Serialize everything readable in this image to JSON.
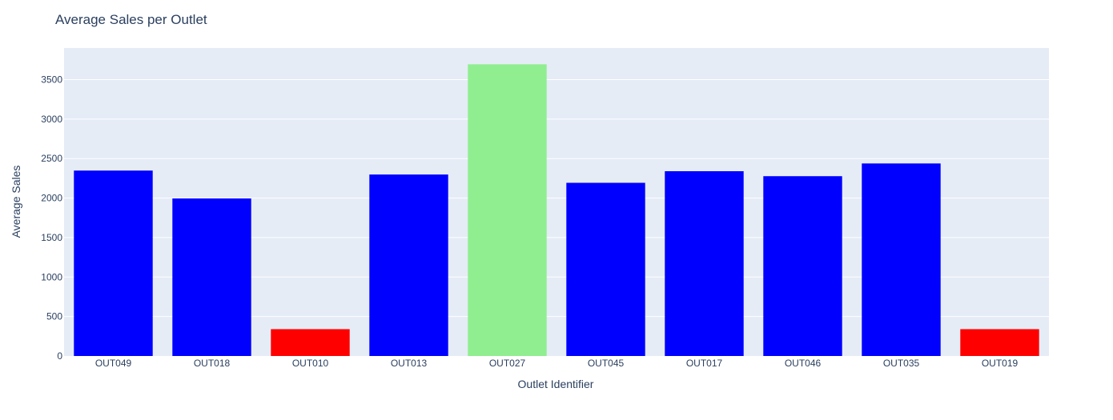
{
  "chart_data": {
    "type": "bar",
    "title": "Average Sales per Outlet",
    "xlabel": "Outlet Identifier",
    "ylabel": "Average Sales",
    "ylim": [
      0,
      3900
    ],
    "yticks": [
      0,
      500,
      1000,
      1500,
      2000,
      2500,
      3000,
      3500
    ],
    "grid": true,
    "legend": "none",
    "categories": [
      "OUT049",
      "OUT018",
      "OUT010",
      "OUT013",
      "OUT027",
      "OUT045",
      "OUT017",
      "OUT046",
      "OUT035",
      "OUT019"
    ],
    "values": [
      2348,
      1995,
      340,
      2298,
      3694,
      2193,
      2340,
      2277,
      2438,
      340
    ],
    "bar_colors": [
      "#0000ff",
      "#0000ff",
      "#ff0000",
      "#0000ff",
      "#90ee90",
      "#0000ff",
      "#0000ff",
      "#0000ff",
      "#0000ff",
      "#ff0000"
    ],
    "plot_background": "#e5ecf6"
  }
}
